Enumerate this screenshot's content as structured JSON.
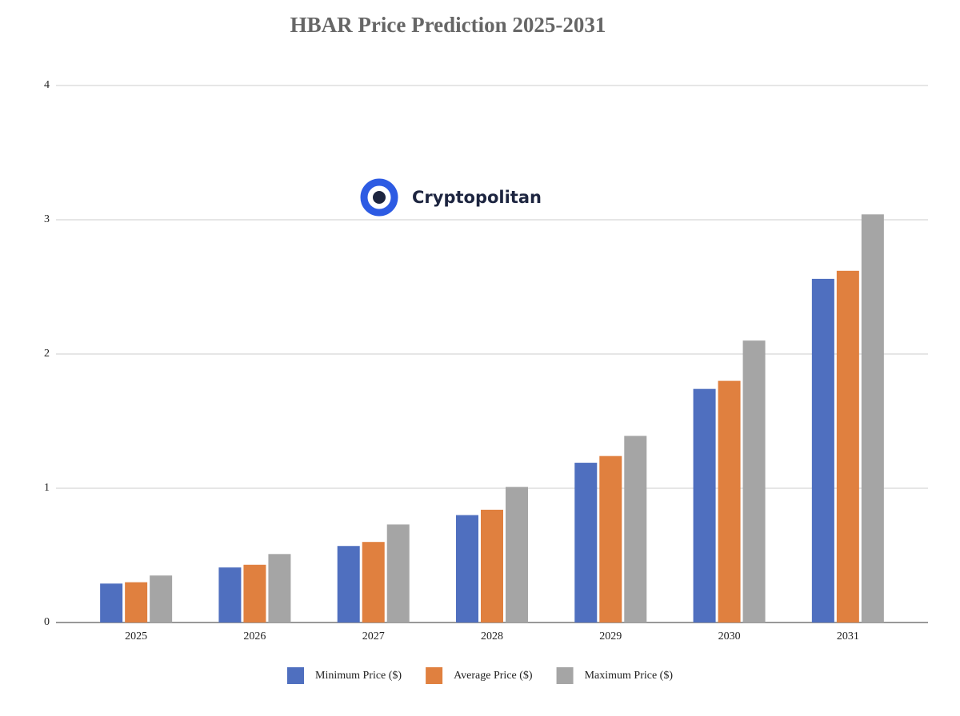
{
  "chart_data": {
    "type": "bar",
    "title": "HBAR Price Prediction 2025-2031",
    "watermark": "Cryptopolitan",
    "categories": [
      "2025",
      "2026",
      "2027",
      "2028",
      "2029",
      "2030",
      "2031"
    ],
    "series": [
      {
        "name": "Minimum Price ($)",
        "color": "#4f6fbf",
        "values": [
          0.29,
          0.41,
          0.57,
          0.8,
          1.19,
          1.74,
          2.56
        ]
      },
      {
        "name": "Average Price ($)",
        "color": "#e0803f",
        "values": [
          0.3,
          0.43,
          0.6,
          0.84,
          1.24,
          1.8,
          2.62
        ]
      },
      {
        "name": "Maximum Price ($)",
        "color": "#a5a5a5",
        "values": [
          0.35,
          0.51,
          0.73,
          1.01,
          1.39,
          2.1,
          3.04
        ]
      }
    ],
    "ylim": [
      0,
      4
    ],
    "yticks": [
      0,
      1,
      2,
      3,
      4
    ],
    "grid": true,
    "legend": "bottom"
  }
}
